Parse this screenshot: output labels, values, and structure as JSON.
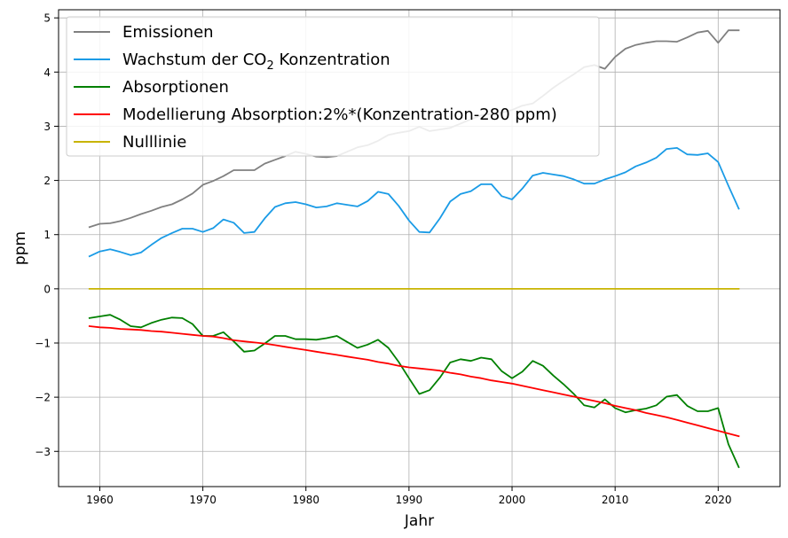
{
  "chart_data": {
    "type": "line",
    "title": "",
    "xlabel": "Jahr",
    "ylabel": "ppm",
    "xlim": [
      1956,
      2026
    ],
    "ylim": [
      -3.65,
      5.15
    ],
    "grid": true,
    "legend_position": "top-left",
    "x_ticks": [
      1960,
      1970,
      1980,
      1990,
      2000,
      2010,
      2020
    ],
    "y_ticks": [
      -3,
      -2,
      -1,
      0,
      1,
      2,
      3,
      4,
      5
    ],
    "x": [
      1959,
      1960,
      1961,
      1962,
      1963,
      1964,
      1965,
      1966,
      1967,
      1968,
      1969,
      1970,
      1971,
      1972,
      1973,
      1974,
      1975,
      1976,
      1977,
      1978,
      1979,
      1980,
      1981,
      1982,
      1983,
      1984,
      1985,
      1986,
      1987,
      1988,
      1989,
      1990,
      1991,
      1992,
      1993,
      1994,
      1995,
      1996,
      1997,
      1998,
      1999,
      2000,
      2001,
      2002,
      2003,
      2004,
      2005,
      2006,
      2007,
      2008,
      2009,
      2010,
      2011,
      2012,
      2013,
      2014,
      2015,
      2016,
      2017,
      2018,
      2019,
      2020,
      2021,
      2022
    ],
    "series": [
      {
        "name": "Emissionen",
        "legend_prefix": "Emissionen",
        "legend_sub": "",
        "legend_suffix": "",
        "color": "#808080",
        "values": [
          1.14,
          1.2,
          1.21,
          1.25,
          1.31,
          1.38,
          1.44,
          1.51,
          1.56,
          1.65,
          1.76,
          1.92,
          1.99,
          2.08,
          2.19,
          2.19,
          2.19,
          2.31,
          2.38,
          2.45,
          2.53,
          2.49,
          2.44,
          2.43,
          2.45,
          2.53,
          2.61,
          2.65,
          2.73,
          2.84,
          2.88,
          2.91,
          2.99,
          2.91,
          2.94,
          2.97,
          3.05,
          3.13,
          3.2,
          3.23,
          3.25,
          3.3,
          3.38,
          3.42,
          3.56,
          3.71,
          3.84,
          3.96,
          4.09,
          4.13,
          4.06,
          4.28,
          4.43,
          4.5,
          4.54,
          4.57,
          4.57,
          4.56,
          4.64,
          4.73,
          4.76,
          4.54,
          4.77,
          4.77
        ]
      },
      {
        "name": "Wachstum der CO2 Konzentration",
        "legend_prefix": "Wachstum der CO",
        "legend_sub": "2",
        "legend_suffix": " Konzentration",
        "color": "#1a9be6",
        "values": [
          0.6,
          0.69,
          0.73,
          0.68,
          0.62,
          0.67,
          0.81,
          0.94,
          1.03,
          1.11,
          1.11,
          1.05,
          1.12,
          1.28,
          1.22,
          1.03,
          1.05,
          1.3,
          1.51,
          1.58,
          1.6,
          1.56,
          1.5,
          1.52,
          1.58,
          1.55,
          1.52,
          1.62,
          1.79,
          1.75,
          1.53,
          1.26,
          1.05,
          1.04,
          1.3,
          1.61,
          1.75,
          1.8,
          1.93,
          1.93,
          1.71,
          1.65,
          1.85,
          2.09,
          2.14,
          2.11,
          2.08,
          2.02,
          1.94,
          1.94,
          2.02,
          2.08,
          2.15,
          2.26,
          2.33,
          2.42,
          2.58,
          2.6,
          2.48,
          2.47,
          2.5,
          2.34,
          1.9,
          1.48
        ]
      },
      {
        "name": "Absorptionen",
        "legend_prefix": "Absorptionen",
        "legend_sub": "",
        "legend_suffix": "",
        "color": "#008000",
        "values": [
          -0.54,
          -0.51,
          -0.48,
          -0.57,
          -0.69,
          -0.71,
          -0.63,
          -0.57,
          -0.53,
          -0.54,
          -0.65,
          -0.87,
          -0.87,
          -0.8,
          -0.97,
          -1.16,
          -1.14,
          -1.01,
          -0.87,
          -0.87,
          -0.93,
          -0.93,
          -0.94,
          -0.91,
          -0.87,
          -0.98,
          -1.09,
          -1.03,
          -0.94,
          -1.09,
          -1.35,
          -1.65,
          -1.94,
          -1.87,
          -1.64,
          -1.36,
          -1.3,
          -1.33,
          -1.27,
          -1.3,
          -1.52,
          -1.65,
          -1.53,
          -1.33,
          -1.42,
          -1.6,
          -1.76,
          -1.94,
          -2.15,
          -2.19,
          -2.04,
          -2.2,
          -2.28,
          -2.24,
          -2.21,
          -2.15,
          -1.99,
          -1.96,
          -2.16,
          -2.26,
          -2.26,
          -2.2,
          -2.87,
          -3.29
        ]
      },
      {
        "name": "Modellierung Absorption:2%*(Konzentration-280 ppm)",
        "legend_prefix": "Modellierung Absorption:2%*(Konzentration-280 ppm)",
        "legend_sub": "",
        "legend_suffix": "",
        "color": "#ff0000",
        "values": [
          -0.69,
          -0.71,
          -0.72,
          -0.74,
          -0.75,
          -0.76,
          -0.78,
          -0.79,
          -0.81,
          -0.83,
          -0.85,
          -0.87,
          -0.88,
          -0.91,
          -0.95,
          -0.97,
          -0.99,
          -1.01,
          -1.04,
          -1.07,
          -1.1,
          -1.13,
          -1.16,
          -1.19,
          -1.22,
          -1.25,
          -1.28,
          -1.31,
          -1.35,
          -1.38,
          -1.42,
          -1.45,
          -1.47,
          -1.49,
          -1.51,
          -1.55,
          -1.58,
          -1.62,
          -1.65,
          -1.69,
          -1.72,
          -1.75,
          -1.79,
          -1.83,
          -1.87,
          -1.91,
          -1.95,
          -1.99,
          -2.03,
          -2.07,
          -2.11,
          -2.16,
          -2.2,
          -2.24,
          -2.29,
          -2.33,
          -2.37,
          -2.42,
          -2.47,
          -2.52,
          -2.57,
          -2.62,
          -2.67,
          -2.72
        ]
      },
      {
        "name": "Nulllinie",
        "legend_prefix": "Nulllinie",
        "legend_sub": "",
        "legend_suffix": "",
        "color": "#c8b400",
        "values": [
          0,
          0,
          0,
          0,
          0,
          0,
          0,
          0,
          0,
          0,
          0,
          0,
          0,
          0,
          0,
          0,
          0,
          0,
          0,
          0,
          0,
          0,
          0,
          0,
          0,
          0,
          0,
          0,
          0,
          0,
          0,
          0,
          0,
          0,
          0,
          0,
          0,
          0,
          0,
          0,
          0,
          0,
          0,
          0,
          0,
          0,
          0,
          0,
          0,
          0,
          0,
          0,
          0,
          0,
          0,
          0,
          0,
          0,
          0,
          0,
          0,
          0,
          0,
          0
        ]
      }
    ]
  }
}
